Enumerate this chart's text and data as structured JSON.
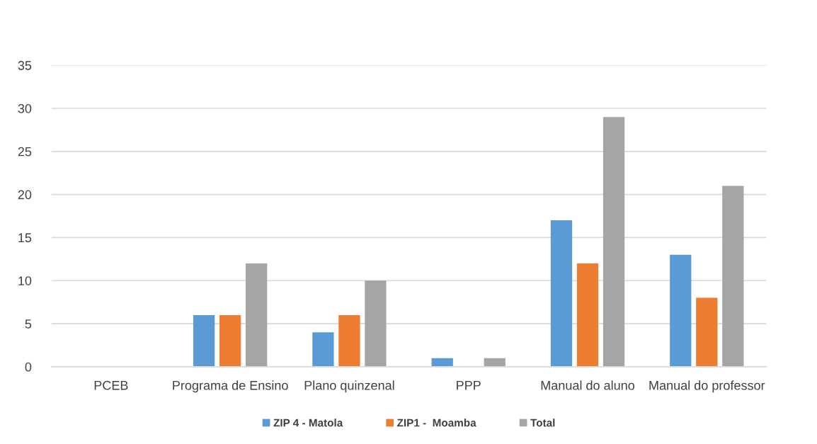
{
  "chart_data": {
    "type": "bar",
    "categories": [
      "PCEB",
      "Programa de Ensino",
      "Plano quinzenal",
      "PPP",
      "Manual do aluno",
      "Manual do professor"
    ],
    "series": [
      {
        "name": "ZIP 4 - Matola",
        "color": "#5b9bd5",
        "values": [
          0,
          6,
          4,
          1,
          17,
          13
        ]
      },
      {
        "name": "ZIP1 -  Moamba",
        "color": "#ed7d31",
        "values": [
          0,
          6,
          6,
          0,
          12,
          8
        ]
      },
      {
        "name": "Total",
        "color": "#a5a5a5",
        "values": [
          0,
          12,
          10,
          1,
          29,
          21
        ]
      }
    ],
    "ylim": [
      0,
      35
    ],
    "yticks": [
      0,
      5,
      10,
      15,
      20,
      25,
      30,
      35
    ],
    "grid": "y",
    "legend": "bottom"
  }
}
